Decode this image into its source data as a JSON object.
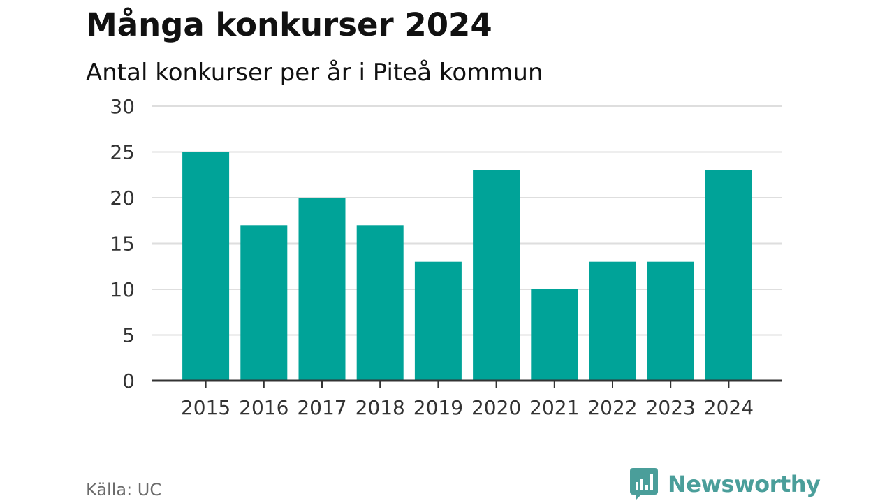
{
  "chart_data": {
    "type": "bar",
    "title": "Många konkurser 2024",
    "subtitle": "Antal konkurser per år i Piteå kommun",
    "categories": [
      "2015",
      "2016",
      "2017",
      "2018",
      "2019",
      "2020",
      "2021",
      "2022",
      "2023",
      "2024"
    ],
    "values": [
      25,
      17,
      20,
      17,
      13,
      23,
      10,
      13,
      13,
      23
    ],
    "ylim": [
      0,
      30
    ],
    "yticks": [
      0,
      5,
      10,
      15,
      20,
      25,
      30
    ],
    "grid": true,
    "bar_color": "#00a398"
  },
  "source": "Källa: UC",
  "brand": {
    "name": "Newsworthy",
    "icon": "newsworthy-logo-icon",
    "color": "#4a9e9a"
  }
}
